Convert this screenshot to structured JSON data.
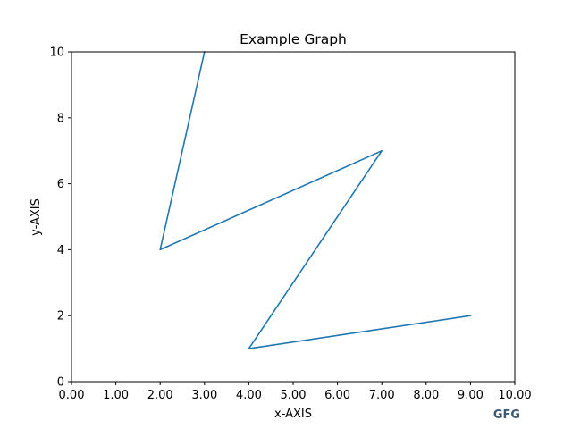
{
  "chart_data": {
    "type": "line",
    "title": "Example Graph",
    "xlabel": "x-AXIS",
    "ylabel": "y-AXIS",
    "xlim": [
      0,
      10
    ],
    "ylim": [
      0,
      10
    ],
    "xticks": [
      0,
      1,
      2,
      3,
      4,
      5,
      6,
      7,
      8,
      9,
      10
    ],
    "xtick_labels": [
      "0.00",
      "1.00",
      "2.00",
      "3.00",
      "4.00",
      "5.00",
      "6.00",
      "7.00",
      "8.00",
      "9.00",
      "10.00"
    ],
    "yticks": [
      0,
      2,
      4,
      6,
      8,
      10
    ],
    "ytick_labels": [
      "0",
      "2",
      "4",
      "6",
      "8",
      "10"
    ],
    "grid": false,
    "series": [
      {
        "color": "#1f77b4",
        "x": [
          9,
          4,
          7,
          2,
          3
        ],
        "y": [
          2,
          1,
          7,
          4,
          10
        ]
      }
    ],
    "annotation": {
      "text": "GFG",
      "color": "#3d5a73"
    }
  }
}
